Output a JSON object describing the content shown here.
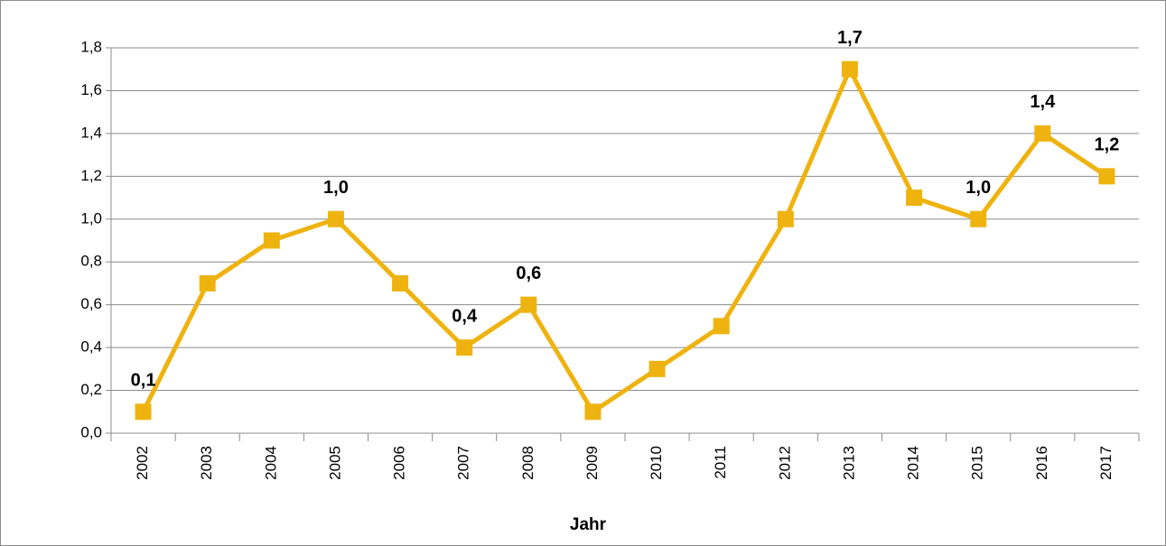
{
  "chart_data": {
    "type": "line",
    "x_label": "Jahr",
    "categories": [
      "2002",
      "2003",
      "2004",
      "2005",
      "2006",
      "2007",
      "2008",
      "2009",
      "2010",
      "2011",
      "2012",
      "2013",
      "2014",
      "2015",
      "2016",
      "2017"
    ],
    "series": [
      {
        "color": "#efb30f",
        "values": [
          0.1,
          0.7,
          0.9,
          1.0,
          0.7,
          0.4,
          0.6,
          0.1,
          0.3,
          0.5,
          1.0,
          1.7,
          1.1,
          1.0,
          1.4,
          1.2
        ],
        "value_labels": [
          "0,1",
          null,
          null,
          "1,0",
          null,
          "0,4",
          "0,6",
          null,
          null,
          null,
          null,
          "1,7",
          null,
          "1,0",
          "1,4",
          "1,2"
        ]
      }
    ],
    "ylim": [
      0,
      1.8
    ],
    "yticks": [
      {
        "value": 0,
        "label": "0,0"
      },
      {
        "value": 0.2,
        "label": "0,2"
      },
      {
        "value": 0.4,
        "label": "0,4"
      },
      {
        "value": 0.6,
        "label": "0,6"
      },
      {
        "value": 0.8,
        "label": "0,8"
      },
      {
        "value": 1.0,
        "label": "1,0"
      },
      {
        "value": 1.2,
        "label": "1,2"
      },
      {
        "value": 1.4,
        "label": "1,4"
      },
      {
        "value": 1.6,
        "label": "1,6"
      },
      {
        "value": 1.8,
        "label": "1,8"
      }
    ],
    "grid": true
  }
}
